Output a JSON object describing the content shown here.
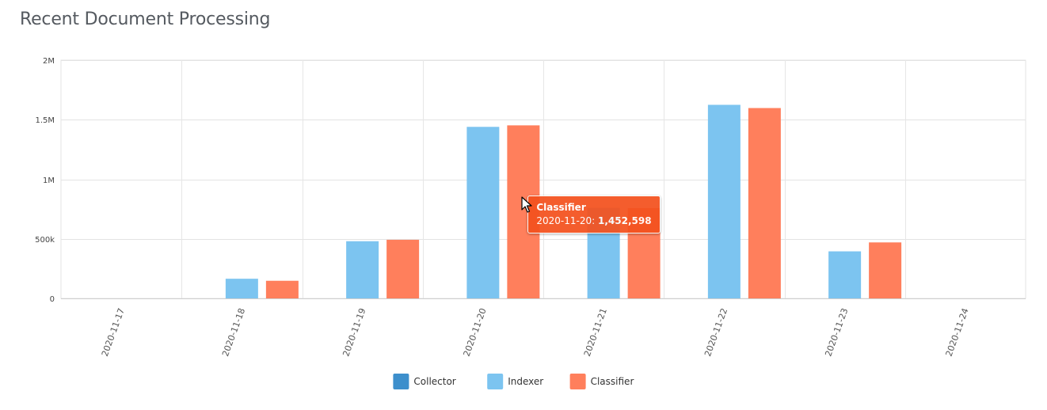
{
  "page": {
    "title": "Recent Document Processing"
  },
  "chart_data": {
    "type": "bar",
    "title": "Recent Document Processing",
    "xlabel": "",
    "ylabel": "",
    "categories": [
      "2020-11-17",
      "2020-11-18",
      "2020-11-19",
      "2020-11-20",
      "2020-11-21",
      "2020-11-22",
      "2020-11-23",
      "2020-11-24"
    ],
    "series": [
      {
        "name": "Collector",
        "color": "#3d8fcc",
        "values": [
          0,
          0,
          0,
          0,
          0,
          0,
          0,
          0
        ]
      },
      {
        "name": "Indexer",
        "color": "#7cc4f0",
        "values": [
          0,
          165000,
          480000,
          1440000,
          760000,
          1625000,
          395000,
          0
        ]
      },
      {
        "name": "Classifier",
        "color": "#ff7f5c",
        "values": [
          0,
          148000,
          492000,
          1452598,
          758000,
          1598000,
          470000,
          0
        ]
      }
    ],
    "ylim": [
      0,
      2000000
    ],
    "yticks": [
      {
        "value": 0,
        "label": "0"
      },
      {
        "value": 500000,
        "label": "500k"
      },
      {
        "value": 1000000,
        "label": "1M"
      },
      {
        "value": 1500000,
        "label": "1.5M"
      },
      {
        "value": 2000000,
        "label": "2M"
      }
    ],
    "grid": true,
    "legend_position": "bottom-center",
    "tooltip": {
      "series": "Classifier",
      "category": "2020-11-20",
      "value_label": "1,452,598",
      "color": "#f4511e"
    }
  }
}
